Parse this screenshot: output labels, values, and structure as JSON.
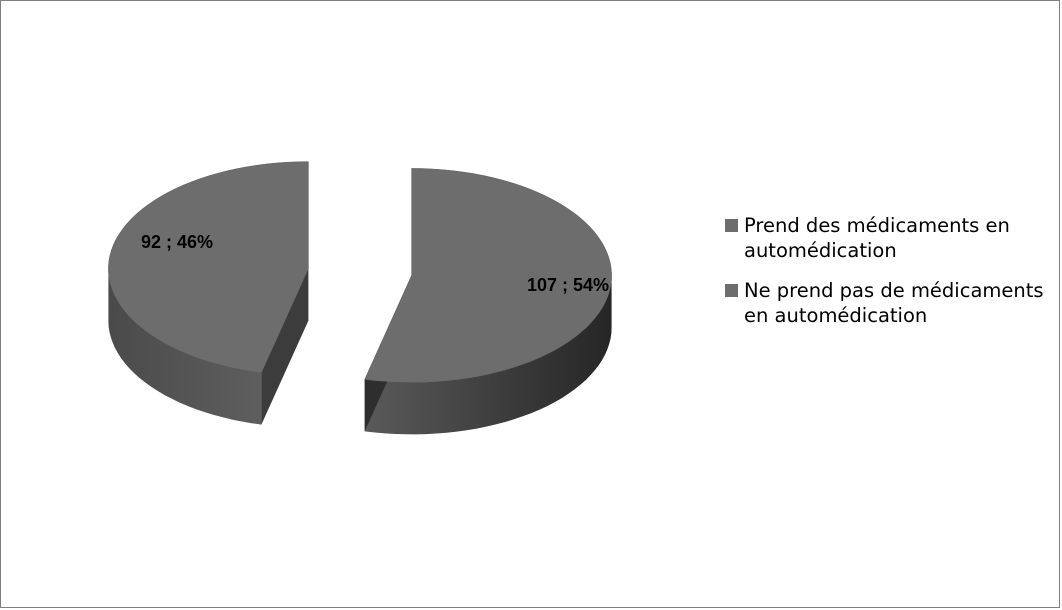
{
  "chart_data": {
    "type": "pie",
    "style": "3d-exploded",
    "title": "",
    "legend_position": "right",
    "slices": [
      {
        "label": "Prend des médicaments en automédication",
        "value": 107,
        "percent": 54,
        "data_label": "107 ; 54%"
      },
      {
        "label": "Ne prend pas de médicaments en automédication",
        "value": 92,
        "percent": 46,
        "data_label": "92 ; 46%"
      }
    ],
    "colors": {
      "slice_top": "#6d6d6d",
      "slice_side_dark": "#262626",
      "slice_side_light": "#5a5a5a",
      "legend_swatch": "#6d6d6d",
      "frame_border": "#7f7f7f"
    }
  }
}
